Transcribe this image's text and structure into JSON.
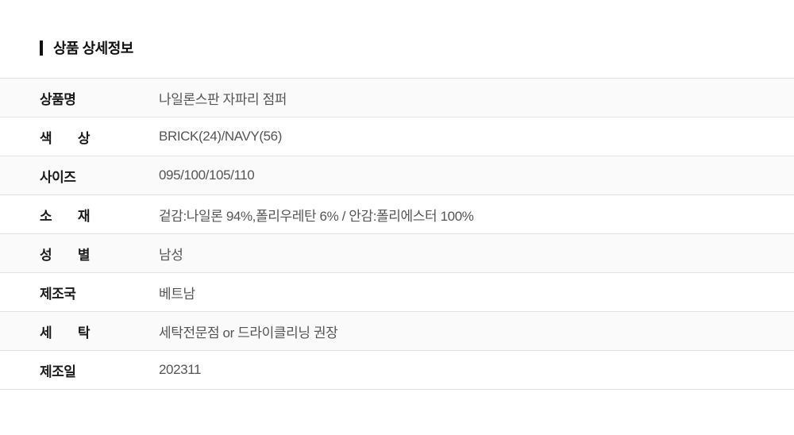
{
  "section": {
    "title": "상품 상세정보"
  },
  "table": {
    "rows": [
      {
        "label": "상품명",
        "value": "나일론스판 자파리 점퍼"
      },
      {
        "label": "색 상",
        "value": "BRICK(24)/NAVY(56)"
      },
      {
        "label": "사이즈",
        "value": "095/100/105/110"
      },
      {
        "label": "소 재",
        "value": "겉감:나일론 94%,폴리우레탄 6% / 안감:폴리에스터 100%"
      },
      {
        "label": "성 별",
        "value": "남성"
      },
      {
        "label": "제조국",
        "value": "베트남"
      },
      {
        "label": "세 탁",
        "value": "세탁전문점 or 드라이클리닝 권장"
      },
      {
        "label": "제조일",
        "value": "202311"
      }
    ]
  },
  "colors": {
    "accent_bar": "#111111",
    "zebra_row_bg": "#fafafa",
    "row_border": "#e2e2e2",
    "label_text": "#1a1a1a",
    "value_text": "#555555"
  }
}
